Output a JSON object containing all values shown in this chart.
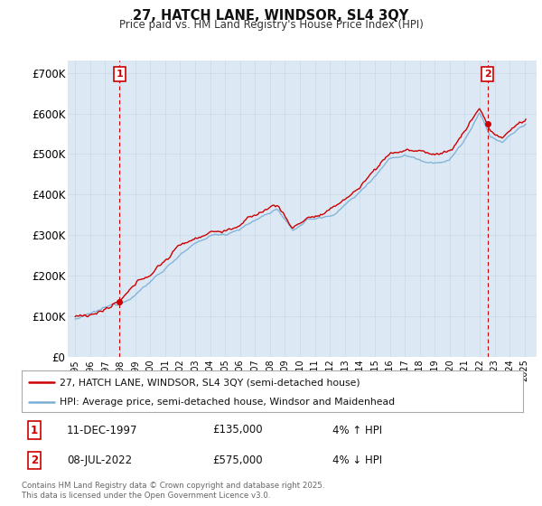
{
  "title_line1": "27, HATCH LANE, WINDSOR, SL4 3QY",
  "title_line2": "Price paid vs. HM Land Registry's House Price Index (HPI)",
  "ylim": [
    0,
    730000
  ],
  "yticks": [
    0,
    100000,
    200000,
    300000,
    400000,
    500000,
    600000,
    700000
  ],
  "ytick_labels": [
    "£0",
    "£100K",
    "£200K",
    "£300K",
    "£400K",
    "£500K",
    "£600K",
    "£700K"
  ],
  "xlim_start": 1994.5,
  "xlim_end": 2025.8,
  "xtick_years": [
    1995,
    1996,
    1997,
    1998,
    1999,
    2000,
    2001,
    2002,
    2003,
    2004,
    2005,
    2006,
    2007,
    2008,
    2009,
    2010,
    2011,
    2012,
    2013,
    2014,
    2015,
    2016,
    2017,
    2018,
    2019,
    2020,
    2021,
    2022,
    2023,
    2024,
    2025
  ],
  "hpi_color": "#7bafd4",
  "price_color": "#cc0000",
  "chart_bg": "#dce9f5",
  "vline_color": "#cc0000",
  "vline_style": "--",
  "marker1_x": 1997.95,
  "marker1_y": 135000,
  "marker2_x": 2022.52,
  "marker2_y": 575000,
  "sale1_date": "11-DEC-1997",
  "sale1_price": "£135,000",
  "sale1_hpi": "4% ↑ HPI",
  "sale2_date": "08-JUL-2022",
  "sale2_price": "£575,000",
  "sale2_hpi": "4% ↓ HPI",
  "legend_line1": "27, HATCH LANE, WINDSOR, SL4 3QY (semi-detached house)",
  "legend_line2": "HPI: Average price, semi-detached house, Windsor and Maidenhead",
  "footer": "Contains HM Land Registry data © Crown copyright and database right 2025.\nThis data is licensed under the Open Government Licence v3.0.",
  "background_color": "#ffffff",
  "grid_color": "#c8d8e8"
}
